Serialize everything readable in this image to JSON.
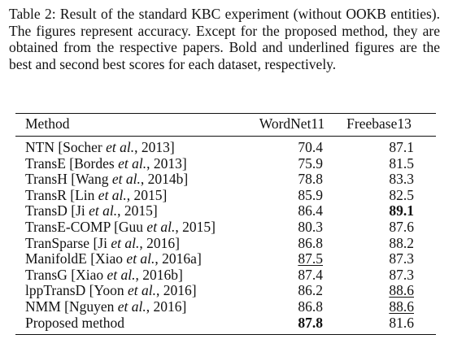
{
  "caption": "Table 2: Result of the standard KBC experiment (without OOKB entities). The figures represent accuracy. Except for the proposed method, they are obtained from the respective papers. Bold and underlined figures are the best and second best scores for each dataset, respectively.",
  "table": {
    "header": [
      "Method",
      "WordNet11",
      "Freebase13"
    ],
    "rows": [
      {
        "method": [
          {
            "text": "NTN [Socher "
          },
          {
            "text": "et al.",
            "italic": true
          },
          {
            "text": ", 2013]"
          }
        ],
        "cells": [
          {
            "value": 70.4
          },
          {
            "value": 87.1
          }
        ]
      },
      {
        "method": [
          {
            "text": "TransE [Bordes "
          },
          {
            "text": "et al.",
            "italic": true
          },
          {
            "text": ", 2013]"
          }
        ],
        "cells": [
          {
            "value": 75.9
          },
          {
            "value": 81.5
          }
        ]
      },
      {
        "method": [
          {
            "text": "TransH [Wang "
          },
          {
            "text": "et al.",
            "italic": true
          },
          {
            "text": ", 2014b]"
          }
        ],
        "cells": [
          {
            "value": 78.8
          },
          {
            "value": 83.3
          }
        ]
      },
      {
        "method": [
          {
            "text": "TransR [Lin "
          },
          {
            "text": "et al.",
            "italic": true
          },
          {
            "text": ", 2015]"
          }
        ],
        "cells": [
          {
            "value": 85.9
          },
          {
            "value": 82.5
          }
        ]
      },
      {
        "method": [
          {
            "text": "TransD [Ji "
          },
          {
            "text": "et al.",
            "italic": true
          },
          {
            "text": ", 2015]"
          }
        ],
        "cells": [
          {
            "value": 86.4
          },
          {
            "value": 89.1,
            "bold": true
          }
        ]
      },
      {
        "method": [
          {
            "text": "TransE-COMP [Guu "
          },
          {
            "text": "et al.",
            "italic": true
          },
          {
            "text": ", 2015]"
          }
        ],
        "cells": [
          {
            "value": 80.3
          },
          {
            "value": 87.6
          }
        ]
      },
      {
        "method": [
          {
            "text": "TranSparse [Ji "
          },
          {
            "text": "et al.",
            "italic": true
          },
          {
            "text": ", 2016]"
          }
        ],
        "cells": [
          {
            "value": 86.8
          },
          {
            "value": 88.2
          }
        ]
      },
      {
        "method": [
          {
            "text": "ManifoldE [Xiao "
          },
          {
            "text": "et al.",
            "italic": true
          },
          {
            "text": ", 2016a]"
          }
        ],
        "cells": [
          {
            "value": 87.5,
            "underline": true
          },
          {
            "value": 87.3
          }
        ]
      },
      {
        "method": [
          {
            "text": "TransG [Xiao "
          },
          {
            "text": "et al.",
            "italic": true
          },
          {
            "text": ", 2016b]"
          }
        ],
        "cells": [
          {
            "value": 87.4
          },
          {
            "value": 87.3
          }
        ]
      },
      {
        "method": [
          {
            "text": "lppTransD [Yoon "
          },
          {
            "text": "et al.",
            "italic": true
          },
          {
            "text": ", 2016]"
          }
        ],
        "cells": [
          {
            "value": 86.2
          },
          {
            "value": 88.6,
            "underline": true
          }
        ]
      },
      {
        "method": [
          {
            "text": "NMM [Nguyen "
          },
          {
            "text": "et al.",
            "italic": true
          },
          {
            "text": ", 2016]"
          }
        ],
        "cells": [
          {
            "value": 86.8
          },
          {
            "value": 88.6,
            "underline": true
          }
        ]
      },
      {
        "method": [
          {
            "text": "Proposed method"
          }
        ],
        "cells": [
          {
            "value": 87.8,
            "bold": true
          },
          {
            "value": 81.6
          }
        ]
      }
    ]
  }
}
